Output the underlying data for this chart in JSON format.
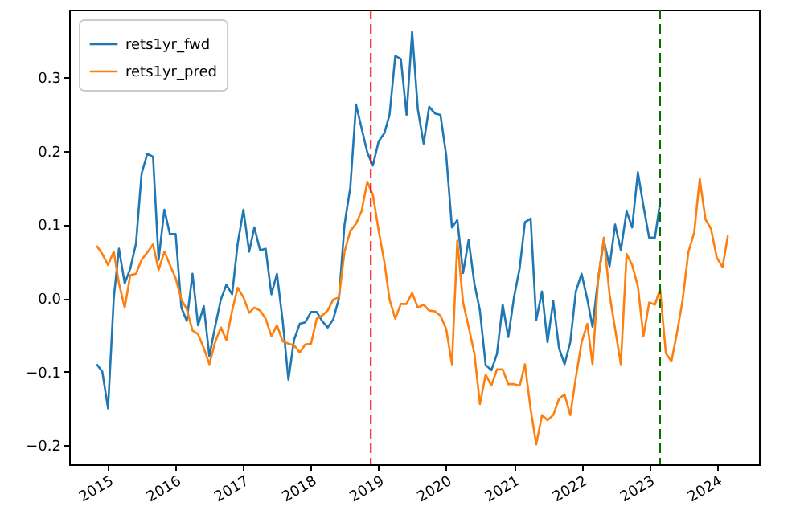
{
  "chart_data": {
    "type": "line",
    "x": [
      "2014-11",
      "2014-12",
      "2015-01",
      "2015-02",
      "2015-03",
      "2015-04",
      "2015-05",
      "2015-06",
      "2015-07",
      "2015-08",
      "2015-09",
      "2015-10",
      "2015-11",
      "2015-12",
      "2016-01",
      "2016-02",
      "2016-03",
      "2016-04",
      "2016-05",
      "2016-06",
      "2016-07",
      "2016-08",
      "2016-09",
      "2016-10",
      "2016-11",
      "2016-12",
      "2017-01",
      "2017-02",
      "2017-03",
      "2017-04",
      "2017-05",
      "2017-06",
      "2017-07",
      "2017-08",
      "2017-09",
      "2017-10",
      "2017-11",
      "2017-12",
      "2018-01",
      "2018-02",
      "2018-03",
      "2018-04",
      "2018-05",
      "2018-06",
      "2018-07",
      "2018-08",
      "2018-09",
      "2018-10",
      "2018-11",
      "2018-12",
      "2019-01",
      "2019-02",
      "2019-03",
      "2019-04",
      "2019-05",
      "2019-06",
      "2019-07",
      "2019-08",
      "2019-09",
      "2019-10",
      "2019-11",
      "2019-12",
      "2020-01",
      "2020-02",
      "2020-03",
      "2020-04",
      "2020-05",
      "2020-06",
      "2020-07",
      "2020-08",
      "2020-09",
      "2020-10",
      "2020-11",
      "2020-12",
      "2021-01",
      "2021-02",
      "2021-03",
      "2021-04",
      "2021-05",
      "2021-06",
      "2021-07",
      "2021-08",
      "2021-09",
      "2021-10",
      "2021-11",
      "2021-12",
      "2022-01",
      "2022-02",
      "2022-03",
      "2022-04",
      "2022-05",
      "2022-06",
      "2022-07",
      "2022-08",
      "2022-09",
      "2022-10",
      "2022-11",
      "2022-12",
      "2023-01",
      "2023-02",
      "2023-03",
      "2023-04",
      "2023-05",
      "2023-06",
      "2023-07",
      "2023-08",
      "2023-09",
      "2023-10",
      "2023-11",
      "2023-12",
      "2024-01",
      "2024-02",
      "2024-03"
    ],
    "series": [
      {
        "name": "rets1yr_fwd",
        "color": "#1f77b4",
        "values": [
          -0.09,
          -0.1,
          -0.15,
          0.0,
          0.067,
          0.02,
          0.04,
          0.074,
          0.169,
          0.196,
          0.192,
          0.052,
          0.12,
          0.087,
          0.087,
          -0.013,
          -0.031,
          0.033,
          -0.037,
          -0.011,
          -0.079,
          -0.039,
          -0.002,
          0.018,
          0.005,
          0.074,
          0.12,
          0.063,
          0.096,
          0.065,
          0.067,
          0.005,
          0.033,
          -0.031,
          -0.111,
          -0.057,
          -0.035,
          -0.033,
          -0.019,
          -0.019,
          -0.031,
          -0.04,
          -0.029,
          0.0,
          0.1,
          0.15,
          0.263,
          0.231,
          0.198,
          0.18,
          0.213,
          0.224,
          0.249,
          0.329,
          0.325,
          0.249,
          0.362,
          0.256,
          0.21,
          0.26,
          0.251,
          0.249,
          0.194,
          0.096,
          0.106,
          0.034,
          0.079,
          0.02,
          -0.017,
          -0.091,
          -0.098,
          -0.076,
          -0.009,
          -0.053,
          0.001,
          0.041,
          0.103,
          0.108,
          -0.03,
          0.009,
          -0.06,
          -0.004,
          -0.068,
          -0.09,
          -0.06,
          0.009,
          0.033,
          -0.002,
          -0.039,
          0.027,
          0.078,
          0.043,
          0.1,
          0.065,
          0.118,
          0.096,
          0.171,
          0.125,
          0.082,
          0.082,
          0.13,
          null,
          null,
          null,
          null,
          null,
          null,
          null,
          null,
          null,
          null,
          null,
          null
        ]
      },
      {
        "name": "rets1yr_pred",
        "color": "#ff7f0e",
        "values": [
          0.071,
          0.06,
          0.045,
          0.063,
          0.02,
          -0.013,
          0.031,
          0.033,
          0.052,
          0.062,
          0.073,
          0.038,
          0.063,
          0.045,
          0.027,
          -0.002,
          -0.015,
          -0.044,
          -0.049,
          -0.068,
          -0.09,
          -0.06,
          -0.04,
          -0.057,
          -0.017,
          0.014,
          0.001,
          -0.02,
          -0.013,
          -0.017,
          -0.028,
          -0.052,
          -0.037,
          -0.059,
          -0.062,
          -0.064,
          -0.074,
          -0.063,
          -0.062,
          -0.028,
          -0.024,
          -0.017,
          -0.002,
          0.001,
          0.063,
          0.091,
          0.101,
          0.118,
          0.158,
          0.14,
          0.092,
          0.049,
          -0.002,
          -0.028,
          -0.008,
          -0.008,
          0.007,
          -0.013,
          -0.009,
          -0.017,
          -0.018,
          -0.024,
          -0.042,
          -0.09,
          0.078,
          -0.006,
          -0.039,
          -0.075,
          -0.144,
          -0.104,
          -0.119,
          -0.097,
          -0.097,
          -0.117,
          -0.117,
          -0.119,
          -0.09,
          -0.151,
          -0.199,
          -0.159,
          -0.166,
          -0.159,
          -0.137,
          -0.131,
          -0.159,
          -0.108,
          -0.06,
          -0.035,
          -0.09,
          0.027,
          0.082,
          0.005,
          -0.042,
          -0.09,
          0.06,
          0.045,
          0.016,
          -0.052,
          -0.006,
          -0.009,
          0.012,
          -0.075,
          -0.086,
          -0.046,
          -0.002,
          0.063,
          0.089,
          0.162,
          0.107,
          0.094,
          0.055,
          0.042,
          0.085
        ]
      }
    ],
    "xlim": [
      "2014-06-05",
      "2024-08-16"
    ],
    "xticks": [
      {
        "value": "2015",
        "label": "2015"
      },
      {
        "value": "2016",
        "label": "2016"
      },
      {
        "value": "2017",
        "label": "2017"
      },
      {
        "value": "2018",
        "label": "2018"
      },
      {
        "value": "2019",
        "label": "2019"
      },
      {
        "value": "2020",
        "label": "2020"
      },
      {
        "value": "2021",
        "label": "2021"
      },
      {
        "value": "2022",
        "label": "2022"
      },
      {
        "value": "2023",
        "label": "2023"
      },
      {
        "value": "2024",
        "label": "2024"
      }
    ],
    "ylim": [
      -0.226,
      0.392
    ],
    "yticks": [
      {
        "value": -0.2,
        "label": "−0.2"
      },
      {
        "value": -0.1,
        "label": "−0.1"
      },
      {
        "value": 0,
        "label": "0.0"
      },
      {
        "value": 0.1,
        "label": "0.1"
      },
      {
        "value": 0.2,
        "label": "0.2"
      },
      {
        "value": 0.3,
        "label": "0.3"
      }
    ],
    "ref_lines": [
      {
        "axis": "x",
        "value": "2018-11-20",
        "color": "#ff0000",
        "line_style": "dashed"
      },
      {
        "axis": "x",
        "value": "2023-03",
        "color": "#007000",
        "line_style": "dashed"
      }
    ],
    "legend": "top left",
    "grid": false
  }
}
